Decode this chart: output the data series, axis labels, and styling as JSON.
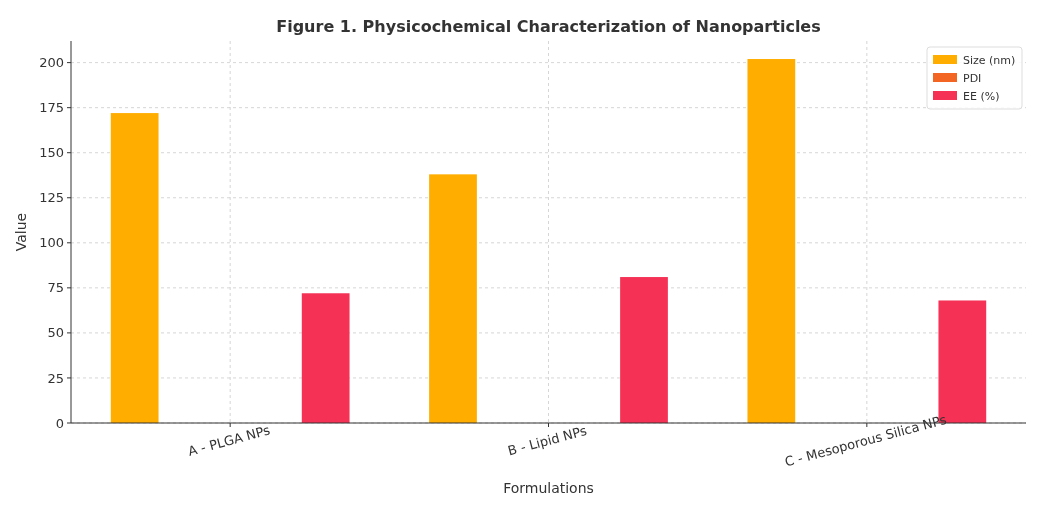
{
  "chart_data": {
    "type": "bar",
    "title": "Figure 1. Physicochemical Characterization of Nanoparticles",
    "xlabel": "Formulations",
    "ylabel": "Value",
    "categories": [
      "A - PLGA NPs",
      "B - Lipid NPs",
      "C - Mesoporous Silica NPs"
    ],
    "series": [
      {
        "name": "Size (nm)",
        "color": "#ffae00",
        "values": [
          172,
          138,
          202
        ]
      },
      {
        "name": "PDI",
        "color": "#f26522",
        "values": [
          0,
          0,
          0
        ]
      },
      {
        "name": "EE (%)",
        "color": "#f53155",
        "values": [
          72,
          81,
          68
        ]
      }
    ],
    "ylim": [
      0,
      212
    ],
    "yticks": [
      0,
      25,
      50,
      75,
      100,
      125,
      150,
      175,
      200
    ],
    "grid": true,
    "legend": "top right"
  }
}
